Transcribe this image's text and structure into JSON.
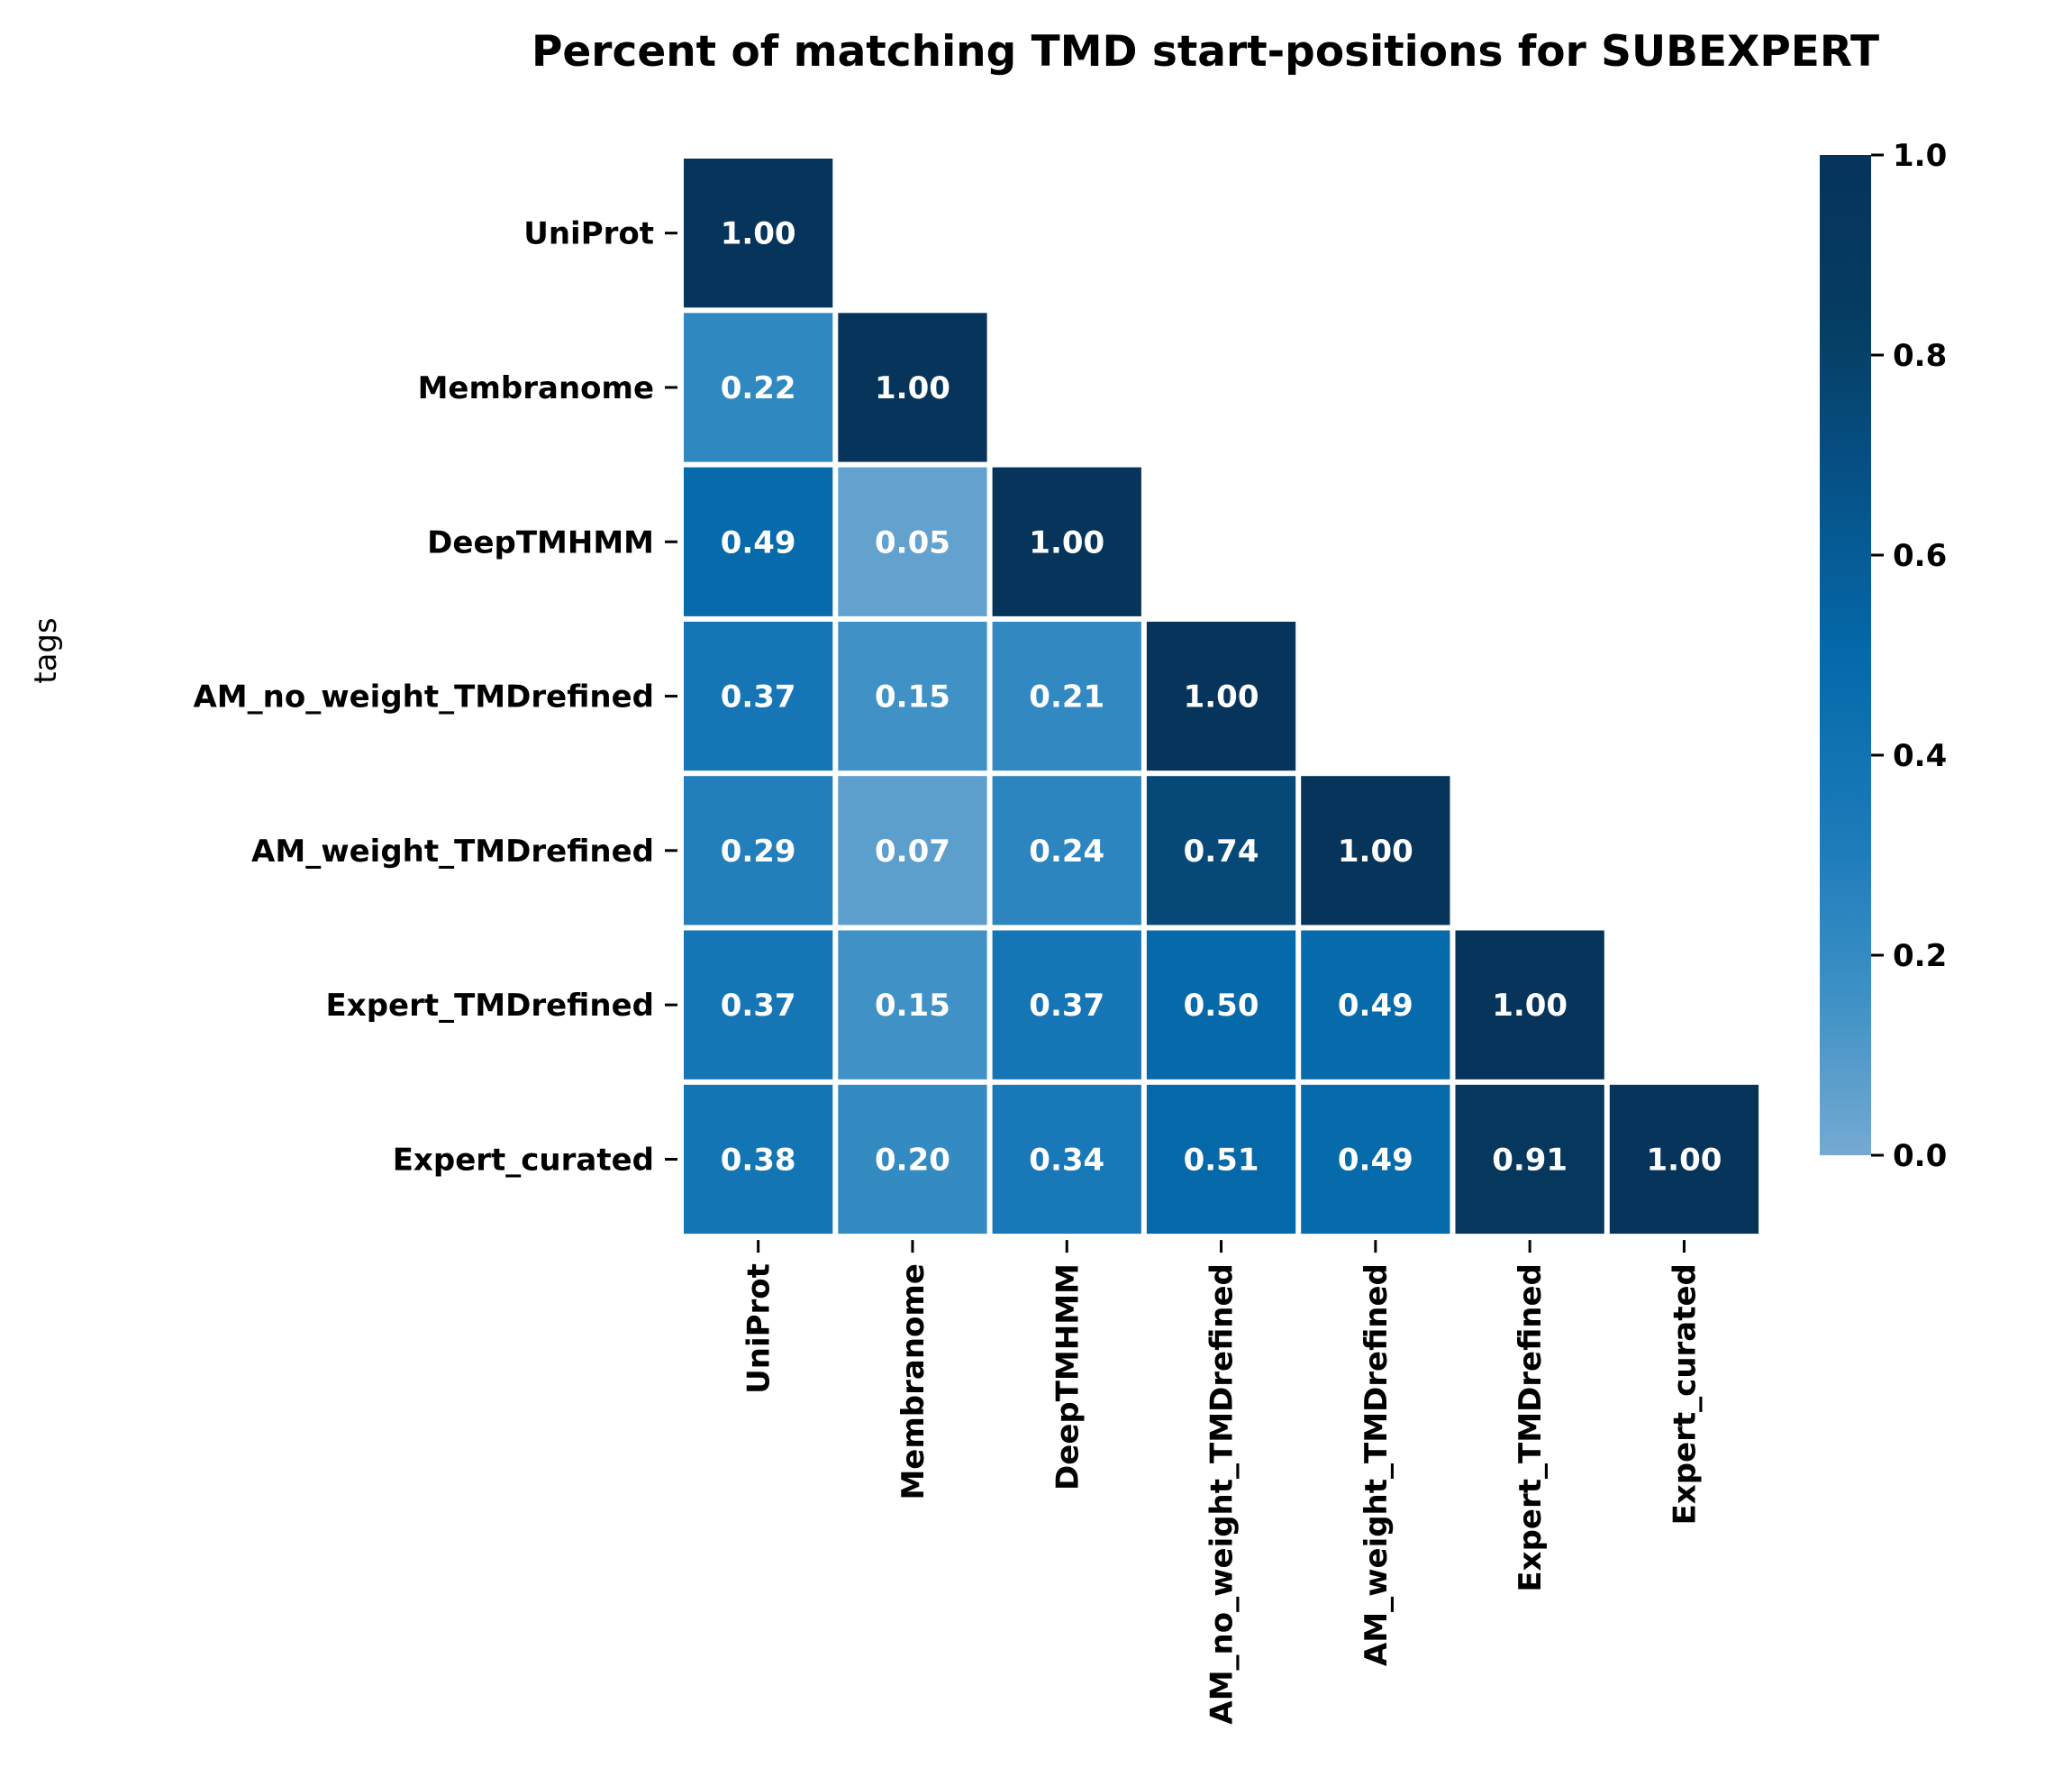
{
  "chart_data": {
    "type": "heatmap",
    "title": "Percent of matching TMD start-positions for SUBEXPERT",
    "xlabel": "",
    "ylabel": "tags",
    "rows": [
      "UniProt",
      "Membranome",
      "DeepTMHMM",
      "AM_no_weight_TMDrefined",
      "AM_weight_TMDrefined",
      "Expert_TMDrefined",
      "Expert_curated"
    ],
    "columns": [
      "UniProt",
      "Membranome",
      "DeepTMHMM",
      "AM_no_weight_TMDrefined",
      "AM_weight_TMDrefined",
      "Expert_TMDrefined",
      "Expert_curated"
    ],
    "values": [
      [
        1.0,
        null,
        null,
        null,
        null,
        null,
        null
      ],
      [
        0.22,
        1.0,
        null,
        null,
        null,
        null,
        null
      ],
      [
        0.49,
        0.05,
        1.0,
        null,
        null,
        null,
        null
      ],
      [
        0.37,
        0.15,
        0.21,
        1.0,
        null,
        null,
        null
      ],
      [
        0.29,
        0.07,
        0.24,
        0.74,
        1.0,
        null,
        null
      ],
      [
        0.37,
        0.15,
        0.37,
        0.5,
        0.49,
        1.0,
        null
      ],
      [
        0.38,
        0.2,
        0.34,
        0.51,
        0.49,
        0.91,
        1.0
      ]
    ],
    "annotation_format": "0.00",
    "mask": "upper triangle",
    "colorbar": {
      "range": [
        0.0,
        1.0
      ],
      "ticks": [
        "0.0",
        "0.2",
        "0.4",
        "0.6",
        "0.8",
        "1.0"
      ],
      "colors": [
        "#75aad2",
        "#3a8fc5",
        "#1a79b8",
        "#0569aa",
        "#06538a",
        "#063c61",
        "#06345a"
      ]
    }
  }
}
